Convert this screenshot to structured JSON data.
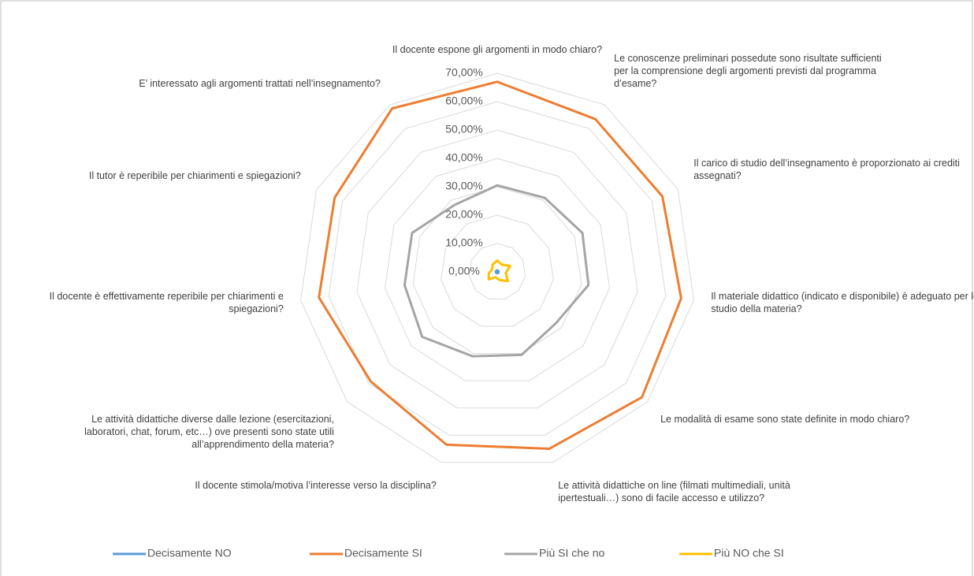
{
  "chart_data": {
    "type": "radar",
    "categories": [
      "Il docente espone gli argomenti in modo chiaro?",
      "Le conoscenze preliminari possedute sono risultate sufficienti per la comprensione degli argomenti previsti dal programma d’esame?",
      "Il carico di studio dell’insegnamento è proporzionato ai crediti assegnati?",
      "Il materiale didattico (indicato e disponibile) è adeguato per lo studio della materia?",
      "Le modalità di esame sono state definite in modo chiaro?",
      "Le attività didattiche on line (filmati multimediali, unità ipertestuali…) sono di facile accesso e utilizzo?",
      "Il docente stimola/motiva l’interesse verso la disciplina?",
      "Le attività didattiche diverse dalle lezione (esercitazioni, laboratori, chat, forum, etc…) ove presenti sono state utili all’apprendimento della materia?",
      "Il docente è effettivamente reperibile per chiarimenti e spiegazioni?",
      "Il tutor è reperibile per chiarimenti e spiegazioni?",
      "E’ interessato agli argomenti trattati nell’insegnamento?"
    ],
    "series": [
      {
        "name": "Decisamente NO",
        "color": "#5b9bd5",
        "values": [
          0.5,
          0.5,
          0.5,
          0.5,
          0.5,
          0.5,
          0.5,
          0.5,
          0.5,
          0.5,
          0.5
        ]
      },
      {
        "name": "Decisamente SI",
        "color": "#ed7d31",
        "values": [
          67,
          64,
          64,
          65.5,
          67.5,
          65,
          63.5,
          59,
          63.5,
          63,
          68.5
        ]
      },
      {
        "name": "Più SI che no",
        "color": "#a5a5a5",
        "values": [
          30.5,
          31,
          33,
          32.5,
          27.5,
          30.5,
          31,
          35,
          33,
          33,
          28
        ]
      },
      {
        "name": "Più NO che SI",
        "color": "#ffc000",
        "values": [
          4,
          3,
          5,
          3,
          5,
          3,
          2,
          4,
          3,
          2,
          3
        ]
      }
    ],
    "ylim": [
      0,
      70
    ],
    "yticks": [
      {
        "value": 0,
        "label": "0,00%"
      },
      {
        "value": 10,
        "label": "10,00%"
      },
      {
        "value": 20,
        "label": "20,00%"
      },
      {
        "value": 30,
        "label": "30,00%"
      },
      {
        "value": 40,
        "label": "40,00%"
      },
      {
        "value": 50,
        "label": "50,00%"
      },
      {
        "value": 60,
        "label": "60,00%"
      },
      {
        "value": 70,
        "label": "70,00%"
      }
    ],
    "grid": true,
    "legend": "bottom"
  }
}
